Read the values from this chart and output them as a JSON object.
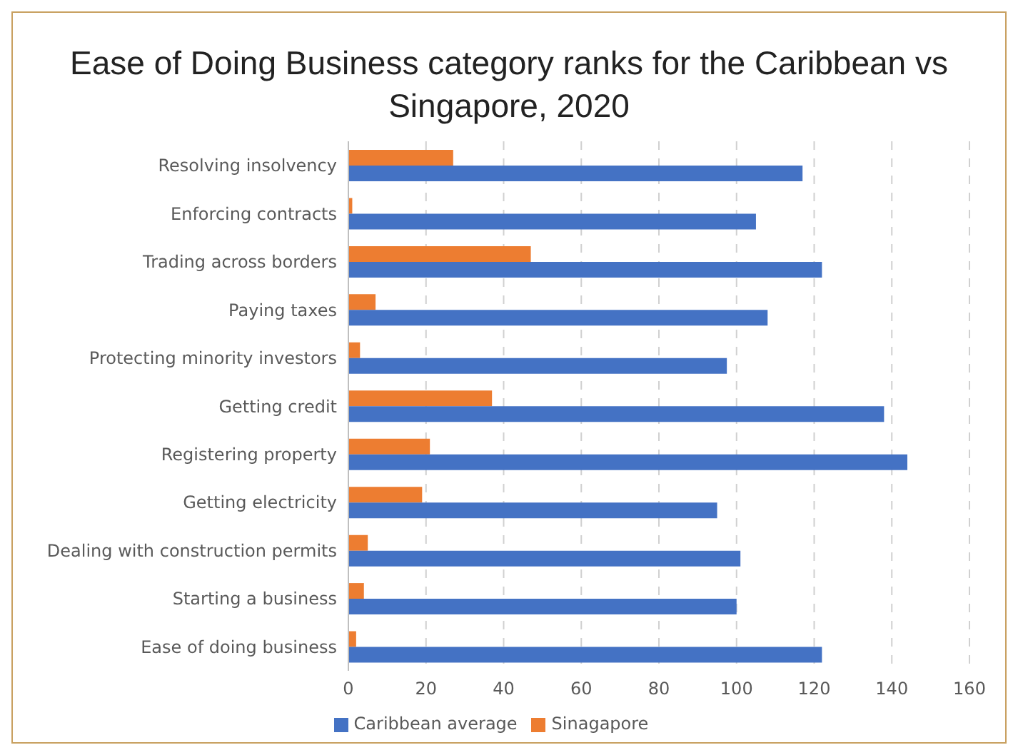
{
  "chart_data": {
    "type": "bar",
    "orientation": "horizontal",
    "title": "Ease of Doing Business category ranks for the Caribbean vs Singapore, 2020",
    "categories": [
      "Resolving insolvency",
      "Enforcing contracts",
      "Trading across borders",
      "Paying taxes",
      "Protecting minority investors",
      "Getting credit",
      "Registering property",
      "Getting electricity",
      "Dealing with construction permits",
      "Starting a business",
      "Ease of doing business"
    ],
    "series": [
      {
        "name": "Sinagapore",
        "color": "#ed7d31",
        "values": [
          27,
          1,
          47,
          7,
          3,
          37,
          21,
          19,
          5,
          4,
          2
        ]
      },
      {
        "name": "Caribbean average",
        "color": "#4472c4",
        "values": [
          117,
          105,
          122,
          108,
          97.5,
          138,
          144,
          95,
          101,
          100,
          122
        ]
      }
    ],
    "xlim": [
      0,
      160
    ],
    "xticks": [
      0,
      20,
      40,
      60,
      80,
      100,
      120,
      140,
      160
    ],
    "grid": "x",
    "legend": "bottom"
  }
}
